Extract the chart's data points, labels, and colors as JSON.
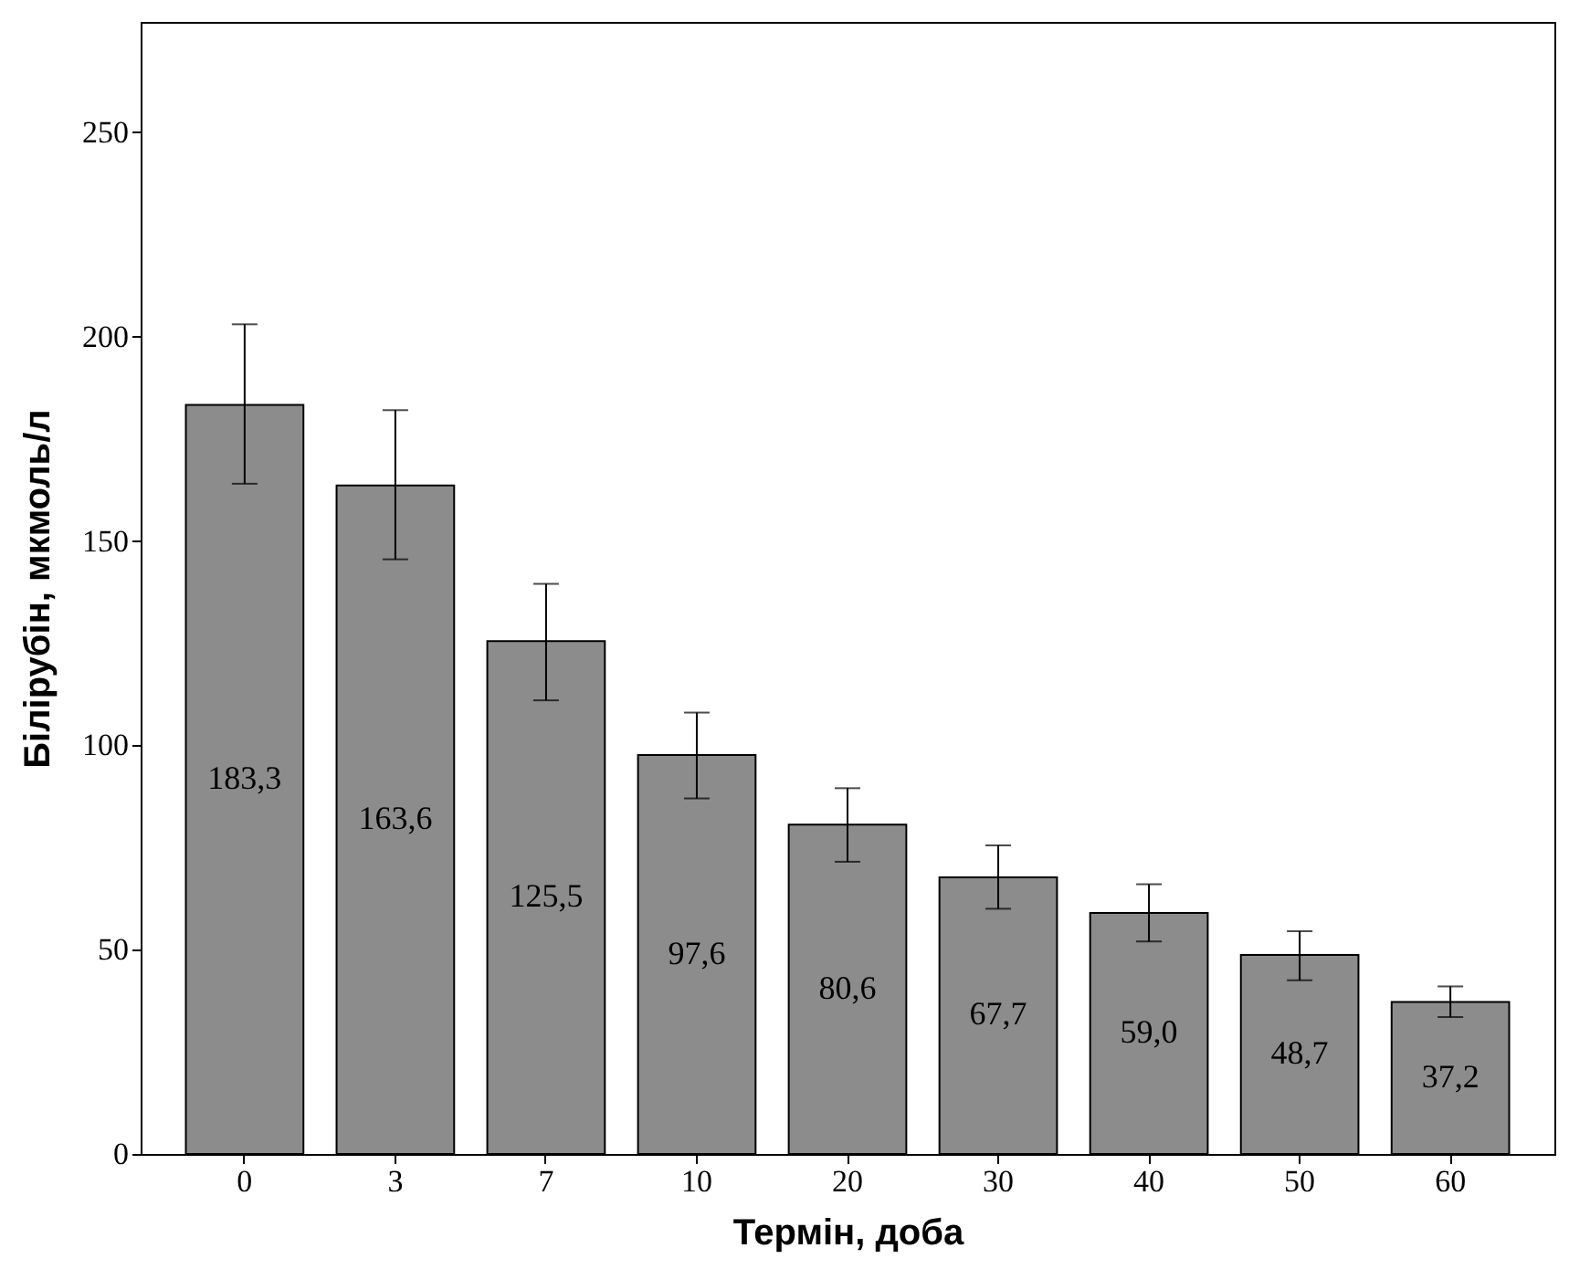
{
  "chart_data": {
    "type": "bar",
    "xlabel": "Термін, доба",
    "ylabel": "Білірубін, мкмоль/л",
    "categories": [
      "0",
      "3",
      "7",
      "10",
      "20",
      "30",
      "40",
      "50",
      "60"
    ],
    "values": [
      183.3,
      163.6,
      125.5,
      97.6,
      80.6,
      67.7,
      59.0,
      48.7,
      37.2
    ],
    "value_labels": [
      "183,3",
      "163,6",
      "125,5",
      "97,6",
      "80,6",
      "67,7",
      "59,0",
      "48,7",
      "37,2"
    ],
    "errors": [
      [
        164,
        203
      ],
      [
        145.5,
        182
      ],
      [
        111,
        139.5
      ],
      [
        87,
        108
      ],
      [
        71.5,
        89.5
      ],
      [
        60,
        75.5
      ],
      [
        52,
        66
      ],
      [
        42.5,
        54.5
      ],
      [
        33.5,
        41
      ]
    ],
    "color": "#8c8c8c",
    "ylim": [
      0,
      277
    ],
    "yticks": [
      0,
      50,
      100,
      150,
      200,
      250
    ],
    "grid": false
  }
}
